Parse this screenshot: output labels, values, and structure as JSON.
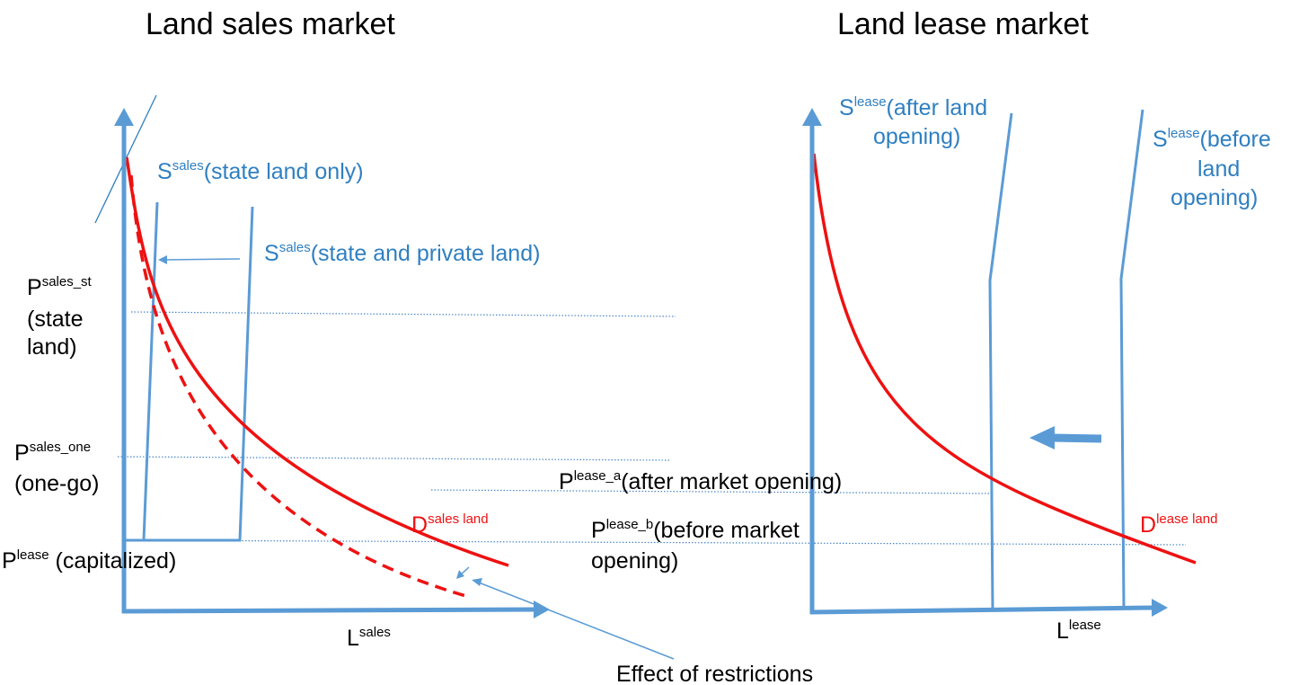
{
  "colors": {
    "axis": "#5b9bd5",
    "supply": "#5b9bd5",
    "demand": "#ee1111",
    "label_blue": "#2f7fc1",
    "label_red": "#ee1111",
    "guide": "#4a86c8",
    "text": "#000000"
  },
  "left_panel": {
    "title": "Land sales market",
    "x_axis_label": {
      "base": "L",
      "sup": "sales"
    },
    "supply_state_only": {
      "base": "S",
      "sup": "sales",
      "rest": "(state land only)"
    },
    "supply_state_private": {
      "base": "S",
      "sup": "sales",
      "rest": "(state and private land)"
    },
    "price_state": {
      "base": "P",
      "sup": "sales_st",
      "line2": "(state",
      "line3": "land)"
    },
    "price_one_go": {
      "base": "P",
      "sup": "sales_one",
      "line2": "(one-go)"
    },
    "price_capitalized": {
      "base": "P",
      "sup": "lease",
      "rest": " (capitalized)"
    },
    "demand": {
      "base": "D",
      "sup": "sales land"
    },
    "effect_label": "Effect of restrictions"
  },
  "right_panel": {
    "title": "Land lease market",
    "x_axis_label": {
      "base": "L",
      "sup": "lease"
    },
    "supply_after": {
      "base": "S",
      "sup": "lease",
      "rest": "(after land",
      "line2": "opening)"
    },
    "supply_before": {
      "base": "S",
      "sup": "lease",
      "rest": "(before",
      "line2": "land",
      "line3": "opening)"
    },
    "price_after": {
      "base": "P",
      "sup": "lease_a",
      "rest": "(after market opening)"
    },
    "price_before": {
      "base": "P",
      "sup": "lease_b",
      "rest": "(before market",
      "line2": "opening)"
    },
    "demand": {
      "base": "D",
      "sup": "lease land"
    },
    "shift_arrow": "left-arrow"
  }
}
